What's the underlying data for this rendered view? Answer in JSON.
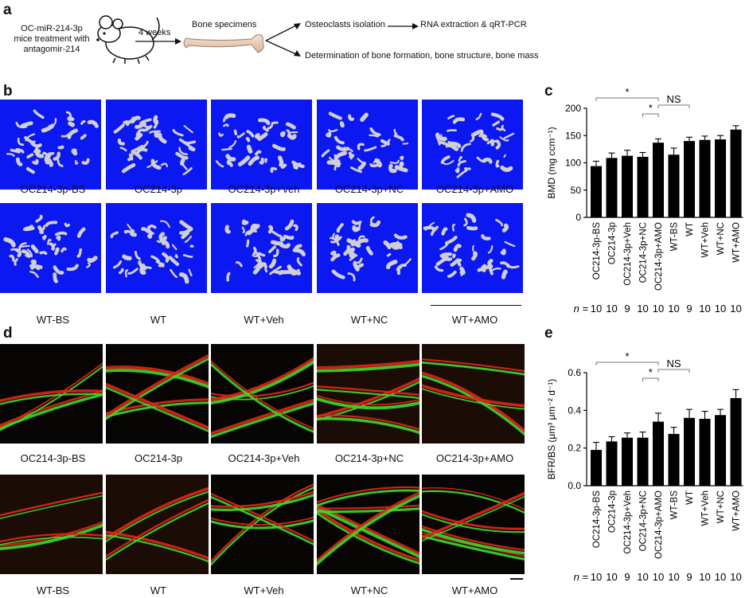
{
  "panel_labels": {
    "a": "a",
    "b": "b",
    "c": "c",
    "d": "d",
    "e": "e"
  },
  "schema": {
    "treatment_line1": "OC-miR-214-3p",
    "treatment_line2": "mice treatment with",
    "treatment_line3": "antagomir-214",
    "duration": "4 weeks",
    "specimens": "Bone specimens",
    "branch1": "Osteoclasts isolation",
    "branch1_next": "RNA extraction & qRT-PCR",
    "branch2": "Determination of bone formation, bone structure, bone mass"
  },
  "panel_b": {
    "row1_captions": [
      "OC214-3p-BS",
      "OC214-3p",
      "OC214-3p+Veh",
      "OC214-3p+NC",
      "OC214-3p+AMO"
    ],
    "row2_captions": [
      "WT-BS",
      "WT",
      "WT+Veh",
      "WT+NC",
      "WT+AMO"
    ]
  },
  "panel_d": {
    "row1_captions": [
      "OC214-3p-BS",
      "OC214-3p",
      "OC214-3p+Veh",
      "OC214-3p+NC",
      "OC214-3p+AMO"
    ],
    "row2_captions": [
      "WT-BS",
      "WT",
      "WT+Veh",
      "WT+NC",
      "WT+AMO"
    ]
  },
  "colors": {
    "ct_background": "#0c18f2",
    "bone_grey": "#cfcfd4",
    "label_red": "#e0241b",
    "label_green": "#3fd82a",
    "bar_black": "#000000"
  },
  "chart_data": [
    {
      "id": "c",
      "type": "bar",
      "ylabel": "BMD (mg ccm⁻¹)",
      "ylim": [
        0,
        200
      ],
      "yticks": [
        "0",
        "50",
        "100",
        "150",
        "200"
      ],
      "categories": [
        "OC214-3p-BS",
        "OC214-3p",
        "OC214-3p+Veh",
        "OC214-3p+NC",
        "OC214-3p+AMO",
        "WT-BS",
        "WT",
        "WT+Veh",
        "WT+NC",
        "WT+AMO"
      ],
      "values": [
        94,
        109,
        113,
        111,
        137,
        115,
        140,
        142,
        143,
        161
      ],
      "errors": [
        9,
        9,
        10,
        8,
        7,
        12,
        7,
        7,
        7,
        7
      ],
      "n_label": "n",
      "n_values": [
        "10",
        "10",
        "9",
        "10",
        "10",
        "10",
        "9",
        "10",
        "10",
        "10"
      ],
      "annotations": [
        "*",
        "*",
        "NS"
      ],
      "grid": false
    },
    {
      "id": "e",
      "type": "bar",
      "ylabel": "BFR/BS (μm³ μm⁻² d⁻¹)",
      "ylim": [
        0,
        0.6
      ],
      "yticks": [
        "0.0",
        "0.2",
        "0.4",
        "0.6"
      ],
      "categories": [
        "OC214-3p-BS",
        "OC214-3p",
        "OC214-3p+Veh",
        "OC214-3p+NC",
        "OC214-3p+AMO",
        "WT-BS",
        "WT",
        "WT+Veh",
        "WT+NC",
        "WT+AMO"
      ],
      "values": [
        0.19,
        0.235,
        0.255,
        0.255,
        0.34,
        0.275,
        0.36,
        0.355,
        0.375,
        0.465
      ],
      "errors": [
        0.04,
        0.025,
        0.025,
        0.03,
        0.045,
        0.035,
        0.045,
        0.04,
        0.03,
        0.045
      ],
      "n_label": "n",
      "n_values": [
        "10",
        "10",
        "9",
        "10",
        "10",
        "10",
        "9",
        "10",
        "10",
        "10"
      ],
      "annotations": [
        "*",
        "*",
        "NS"
      ],
      "grid": false
    }
  ]
}
